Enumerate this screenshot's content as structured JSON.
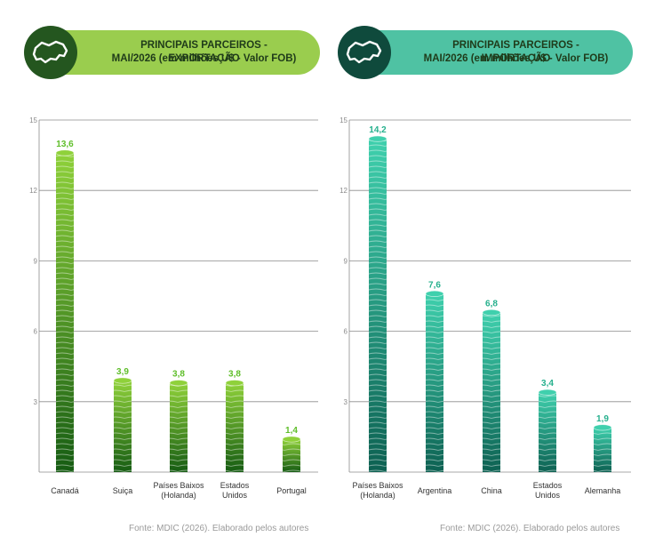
{
  "charts": [
    {
      "header": {
        "title": "PRINCIPAIS PARCEIROS - EXPORTAÇÃO",
        "subtitle": "MAI/2026 (em milhões U$ - Valor FOB)"
      },
      "colors": {
        "banner": "#9acd4e",
        "badge": "#24561f",
        "bar_top": "#8fd13a",
        "bar_bottom": "#165c13",
        "label": "#5fbe2a"
      },
      "source": "Fonte: MDIC (2026). Elaborado pelos autores",
      "chart_data": {
        "type": "bar",
        "categories": [
          [
            "Canadá"
          ],
          [
            "Suiça"
          ],
          [
            "Países Baixos",
            "(Holanda)"
          ],
          [
            "Estados",
            "Unidos"
          ],
          [
            "Portugal"
          ]
        ],
        "values": [
          13.6,
          3.9,
          3.8,
          3.8,
          1.4
        ],
        "value_labels": [
          "13,6",
          "3,9",
          "3,8",
          "3,8",
          "1,4"
        ],
        "ylim": [
          0,
          15
        ],
        "yticks": [
          3,
          6,
          9,
          12,
          15
        ],
        "grid": true
      }
    },
    {
      "header": {
        "title": "PRINCIPAIS PARCEIROS - IMPORTAÇÃO",
        "subtitle": "MAI/2026 (em milhões U$ - Valor FOB)"
      },
      "colors": {
        "banner": "#4fc2a3",
        "badge": "#0f4a3c",
        "bar_top": "#3fd0ad",
        "bar_bottom": "#0d6152",
        "label": "#26b08d"
      },
      "source": "Fonte: MDIC (2026). Elaborado pelos autores",
      "chart_data": {
        "type": "bar",
        "categories": [
          [
            "Países Baixos",
            "(Holanda)"
          ],
          [
            "Argentina"
          ],
          [
            "China"
          ],
          [
            "Estados",
            "Unidos"
          ],
          [
            "Alemanha"
          ]
        ],
        "values": [
          14.2,
          7.6,
          6.8,
          3.4,
          1.9
        ],
        "value_labels": [
          "14,2",
          "7,6",
          "6,8",
          "3,4",
          "1,9"
        ],
        "ylim": [
          0,
          15
        ],
        "yticks": [
          3,
          6,
          9,
          12,
          15
        ],
        "grid": true
      }
    }
  ]
}
